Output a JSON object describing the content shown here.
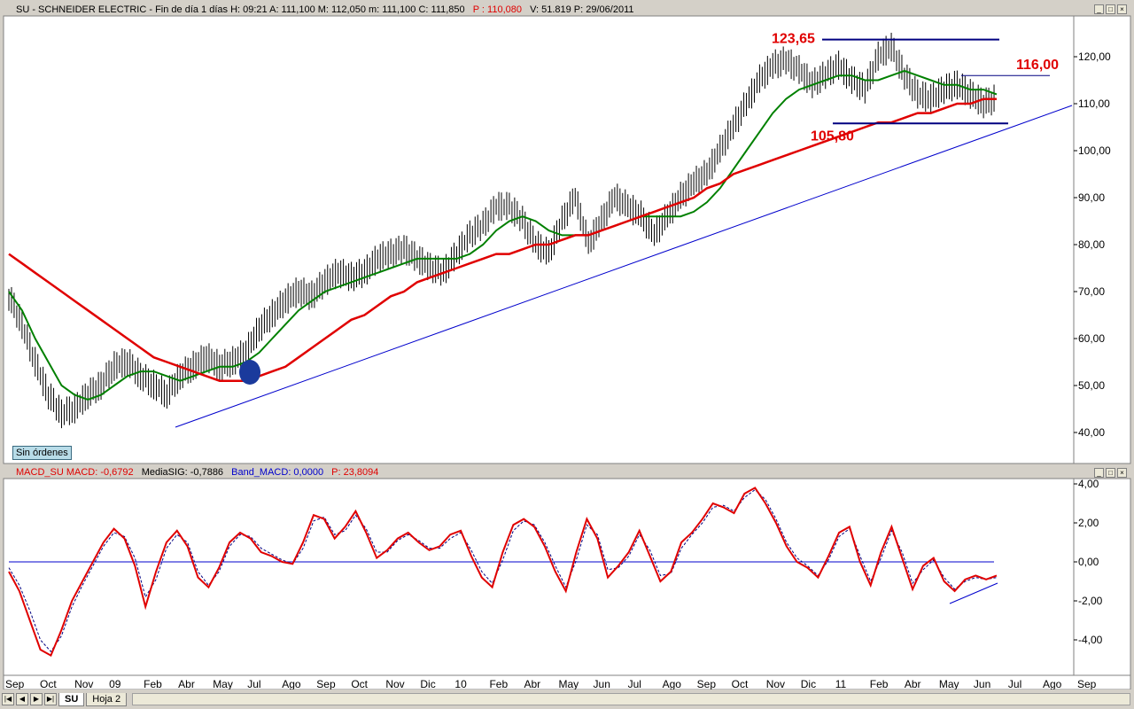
{
  "price_pane": {
    "header": "SU - SCHNEIDER ELECTRIC - Fin de día 1 días  H: 09:21  A: 111,100  M: 112,050  m: 111,100  C: 111,850",
    "header_p": "P : 110,080",
    "header_rest": "V: 51.819  P: 29/06/2011",
    "status_badge": "Sin órdenes",
    "level_labels": [
      "123,65",
      "116,00",
      "105,80"
    ]
  },
  "macd_pane": {
    "header_series": "MACD_SU  MACD: -0,6792",
    "header_sig": "MediaSIG: -0,7886",
    "header_band": "Band_MACD: 0,0000",
    "header_p": "P: 23,8094"
  },
  "window_buttons": [
    "_",
    "□",
    "×"
  ],
  "tabs": [
    "SU",
    "Hoja 2"
  ],
  "colors": {
    "price_bars": "#000000",
    "ma_green": "#008000",
    "ma_red": "#e00000",
    "trendline": "#0000cc",
    "level_lines": "#000080",
    "level_labels": "#e00000",
    "macd": "#e00000",
    "signal": "#000080",
    "zero_line": "#0000cc",
    "cross_marker": "#1a3a9c"
  },
  "chart_data": [
    {
      "type": "line",
      "name": "price",
      "x_tick_labels": [
        "Sep",
        "Oct",
        "Nov",
        "09",
        "Feb",
        "Abr",
        "May",
        "Jul",
        "Ago",
        "Sep",
        "Oct",
        "Nov",
        "Dic",
        "10",
        "Feb",
        "Abr",
        "May",
        "Jun",
        "Jul",
        "Ago",
        "Sep",
        "Oct",
        "Nov",
        "Dic",
        "11",
        "Feb",
        "Abr",
        "May",
        "Jun",
        "Jul",
        "Ago",
        "Sep"
      ],
      "y_ticks": [
        "40,00",
        "50,00",
        "60,00",
        "70,00",
        "80,00",
        "90,00",
        "100,00",
        "110,00",
        "120,00"
      ],
      "ylim": [
        35,
        126
      ],
      "series": [
        {
          "values": [
            69,
            63,
            55,
            48,
            44,
            45,
            48,
            50,
            54,
            55,
            52,
            50,
            48,
            52,
            54,
            56,
            54,
            55,
            57,
            62,
            65,
            68,
            70,
            69,
            72,
            74,
            73,
            74,
            77,
            78,
            79,
            77,
            75,
            74,
            78,
            82,
            84,
            88,
            88,
            85,
            80,
            78,
            85,
            90,
            80,
            85,
            90,
            88,
            86,
            82,
            86,
            90,
            93,
            95,
            100,
            105,
            110,
            115,
            118,
            119,
            117,
            114,
            116,
            118,
            115,
            113,
            120,
            122,
            116,
            112,
            111,
            113,
            114,
            112,
            110,
            111
          ]
        },
        {
          "values": [
            70,
            66,
            60,
            55,
            50,
            48,
            47,
            48,
            50,
            52,
            53,
            53,
            52,
            51,
            52,
            53,
            54,
            54,
            55,
            57,
            60,
            63,
            66,
            68,
            70,
            71,
            72,
            73,
            74,
            75,
            76,
            77,
            77,
            77,
            77,
            78,
            80,
            83,
            85,
            86,
            85,
            83,
            82,
            82,
            82,
            83,
            84,
            85,
            86,
            86,
            86,
            86,
            87,
            89,
            92,
            96,
            100,
            104,
            108,
            111,
            113,
            114,
            115,
            116,
            116,
            115,
            115,
            116,
            117,
            116,
            115,
            114,
            114,
            113,
            113,
            112
          ]
        },
        {
          "values": [
            78,
            76,
            74,
            72,
            70,
            68,
            66,
            64,
            62,
            60,
            58,
            56,
            55,
            54,
            53,
            52,
            51,
            51,
            51,
            52,
            53,
            54,
            56,
            58,
            60,
            62,
            64,
            65,
            67,
            69,
            70,
            72,
            73,
            74,
            75,
            76,
            77,
            78,
            78,
            79,
            80,
            80,
            81,
            82,
            82,
            83,
            84,
            85,
            86,
            87,
            88,
            89,
            90,
            92,
            93,
            95,
            96,
            97,
            98,
            99,
            100,
            101,
            102,
            103,
            104,
            105,
            106,
            106,
            107,
            108,
            108,
            109,
            110,
            110,
            111,
            111
          ]
        }
      ],
      "annotations": [
        {
          "label": "123,65",
          "value": 123.65
        },
        {
          "label": "116,00",
          "value": 116.0
        },
        {
          "label": "105,80",
          "value": 105.8
        }
      ],
      "grid": false
    },
    {
      "type": "line",
      "name": "MACD",
      "y_ticks": [
        "4,00",
        "2,00",
        "0,00",
        "-2,00",
        "-4,00"
      ],
      "ylim": [
        -5.2,
        4.2
      ],
      "series": [
        {
          "values": [
            -0.5,
            -1.5,
            -3,
            -4.5,
            -4.8,
            -3.5,
            -2,
            -1,
            0,
            1,
            1.7,
            1.2,
            -0.2,
            -2.3,
            -0.5,
            1,
            1.6,
            0.8,
            -0.8,
            -1.3,
            -0.3,
            1,
            1.5,
            1.2,
            0.5,
            0.3,
            0,
            -0.1,
            1,
            2.4,
            2.2,
            1.2,
            1.8,
            2.6,
            1.5,
            0.2,
            0.6,
            1.2,
            1.5,
            1,
            0.6,
            0.8,
            1.4,
            1.6,
            0.3,
            -0.8,
            -1.3,
            0.5,
            1.9,
            2.2,
            1.8,
            0.8,
            -0.5,
            -1.5,
            0.5,
            2.2,
            1.2,
            -0.8,
            -0.2,
            0.5,
            1.6,
            0.3,
            -1,
            -0.5,
            1,
            1.5,
            2.2,
            3,
            2.8,
            2.5,
            3.5,
            3.8,
            3,
            2,
            0.8,
            0,
            -0.3,
            -0.8,
            0.3,
            1.5,
            1.8,
            0,
            -1.2,
            0.5,
            1.8,
            0.2,
            -1.4,
            -0.2,
            0.2,
            -1,
            -1.5,
            -0.9,
            -0.7,
            -0.9,
            -0.7
          ]
        },
        {
          "values": [
            -0.3,
            -1.2,
            -2.5,
            -4,
            -4.6,
            -3.8,
            -2.3,
            -1.2,
            -0.2,
            0.8,
            1.5,
            1.3,
            0.2,
            -1.8,
            -0.9,
            0.7,
            1.4,
            1,
            -0.5,
            -1.2,
            -0.5,
            0.8,
            1.4,
            1.3,
            0.7,
            0.4,
            0.1,
            -0.1,
            0.7,
            2.1,
            2.3,
            1.4,
            1.6,
            2.4,
            1.7,
            0.5,
            0.5,
            1.1,
            1.4,
            1.1,
            0.7,
            0.7,
            1.2,
            1.5,
            0.6,
            -0.5,
            -1.1,
            0.1,
            1.6,
            2.1,
            1.9,
            1,
            -0.2,
            -1.3,
            0.1,
            1.9,
            1.4,
            -0.4,
            -0.3,
            0.3,
            1.4,
            0.6,
            -0.7,
            -0.6,
            0.7,
            1.4,
            2,
            2.8,
            2.9,
            2.6,
            3.3,
            3.7,
            3.2,
            2.2,
            1,
            0.2,
            -0.2,
            -0.7,
            0.1,
            1.3,
            1.7,
            0.3,
            -1,
            0.2,
            1.6,
            0.5,
            -1.1,
            -0.4,
            0.1,
            -0.8,
            -1.4,
            -1,
            -0.8,
            -0.9,
            -0.8
          ]
        }
      ],
      "zero_line": 0,
      "grid": false
    }
  ]
}
